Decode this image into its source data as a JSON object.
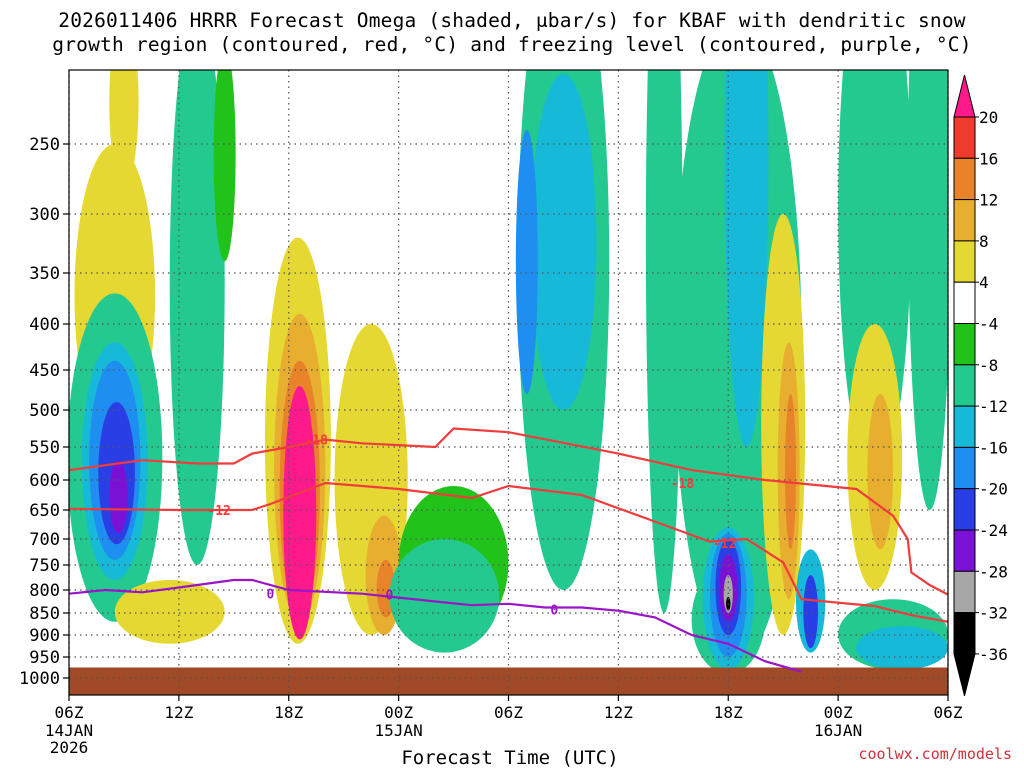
{
  "chart_data": {
    "type": "heatmap",
    "title_line1": "2026011406 HRRR Forecast Omega (shaded, μbar/s) for KBAF with dendritic snow",
    "title_line2": "growth region (contoured, red, °C) and freezing level (contoured, purple, °C)",
    "xlabel": "Forecast Time (UTC)",
    "ylabel": "",
    "credit": "coolwx.com/models",
    "x_unit": "hours since 2026-01-14 06Z",
    "xlim": [
      0,
      48
    ],
    "x_ticks": [
      {
        "h": 0,
        "label": "06Z",
        "sub1": "14JAN",
        "sub2": "2026"
      },
      {
        "h": 6,
        "label": "12Z",
        "sub1": "",
        "sub2": ""
      },
      {
        "h": 12,
        "label": "18Z",
        "sub1": "",
        "sub2": ""
      },
      {
        "h": 18,
        "label": "00Z",
        "sub1": "15JAN",
        "sub2": ""
      },
      {
        "h": 24,
        "label": "06Z",
        "sub1": "",
        "sub2": ""
      },
      {
        "h": 30,
        "label": "12Z",
        "sub1": "",
        "sub2": ""
      },
      {
        "h": 36,
        "label": "18Z",
        "sub1": "",
        "sub2": ""
      },
      {
        "h": 42,
        "label": "00Z",
        "sub1": "16JAN",
        "sub2": ""
      },
      {
        "h": 48,
        "label": "06Z",
        "sub1": "",
        "sub2": ""
      }
    ],
    "y_unit": "hPa",
    "ylim": [
      1000,
      200
    ],
    "y_ticks": [
      250,
      300,
      350,
      400,
      450,
      500,
      550,
      600,
      650,
      700,
      750,
      800,
      850,
      900,
      950,
      1000
    ],
    "colorbar": {
      "labels": [
        "20",
        "16",
        "12",
        "8",
        "4",
        "-4",
        "-8",
        "-12",
        "-16",
        "-20",
        "-24",
        "-28",
        "-32",
        "-36"
      ],
      "colors": [
        "#ff1a8c",
        "#ee3b2e",
        "#e8832a",
        "#e8ae30",
        "#e6d832",
        "#ffffff",
        "#21c21a",
        "#23c98f",
        "#17b9d9",
        "#1e8ef0",
        "#2a3ee6",
        "#7a12d6",
        "#a7a7a7",
        "#000000"
      ]
    },
    "omega_regions": [
      {
        "level": 4,
        "center": [
          2.5,
          400
        ],
        "spread": [
          2.2,
          150
        ]
      },
      {
        "level": -8,
        "center": [
          2.5,
          620
        ],
        "spread": [
          2.6,
          250
        ]
      },
      {
        "level": -8,
        "center": [
          7.0,
          450
        ],
        "spread": [
          1.5,
          300
        ]
      },
      {
        "level": -12,
        "center": [
          2.5,
          600
        ],
        "spread": [
          1.8,
          180
        ]
      },
      {
        "level": -16,
        "center": [
          2.5,
          590
        ],
        "spread": [
          1.4,
          150
        ]
      },
      {
        "level": -20,
        "center": [
          2.6,
          600
        ],
        "spread": [
          1.0,
          110
        ]
      },
      {
        "level": -28,
        "center": [
          2.7,
          630
        ],
        "spread": [
          0.5,
          60
        ]
      },
      {
        "level": 4,
        "center": [
          5.5,
          850
        ],
        "spread": [
          3.0,
          70
        ]
      },
      {
        "level": 4,
        "center": [
          3.0,
          220
        ],
        "spread": [
          0.8,
          60
        ]
      },
      {
        "level": -4,
        "center": [
          8.5,
          260
        ],
        "spread": [
          0.6,
          80
        ]
      },
      {
        "level": 4,
        "center": [
          12.5,
          620
        ],
        "spread": [
          1.8,
          300
        ]
      },
      {
        "level": 8,
        "center": [
          12.6,
          630
        ],
        "spread": [
          1.4,
          240
        ]
      },
      {
        "level": 12,
        "center": [
          12.6,
          650
        ],
        "spread": [
          1.1,
          210
        ]
      },
      {
        "level": 20,
        "center": [
          12.6,
          690
        ],
        "spread": [
          0.9,
          220
        ]
      },
      {
        "level": 4,
        "center": [
          16.5,
          650
        ],
        "spread": [
          2.0,
          250
        ]
      },
      {
        "level": 8,
        "center": [
          17.2,
          780
        ],
        "spread": [
          1.0,
          120
        ]
      },
      {
        "level": 12,
        "center": [
          17.3,
          800
        ],
        "spread": [
          0.5,
          60
        ]
      },
      {
        "level": -4,
        "center": [
          21.0,
          760
        ],
        "spread": [
          3.0,
          150
        ]
      },
      {
        "level": -8,
        "center": [
          20.5,
          820
        ],
        "spread": [
          3.0,
          120
        ]
      },
      {
        "level": -8,
        "center": [
          27.0,
          450
        ],
        "spread": [
          2.5,
          350
        ]
      },
      {
        "level": -12,
        "center": [
          27.0,
          350
        ],
        "spread": [
          1.8,
          150
        ]
      },
      {
        "level": -16,
        "center": [
          25.0,
          360
        ],
        "spread": [
          0.6,
          120
        ]
      },
      {
        "level": -8,
        "center": [
          32.5,
          450
        ],
        "spread": [
          1.0,
          400
        ]
      },
      {
        "level": 4,
        "center": [
          35.0,
          570
        ],
        "spread": [
          1.5,
          150
        ]
      },
      {
        "level": 8,
        "center": [
          35.0,
          560
        ],
        "spread": [
          1.0,
          100
        ]
      },
      {
        "level": -8,
        "center": [
          36.5,
          560
        ],
        "spread": [
          3.5,
          400
        ]
      },
      {
        "level": -8,
        "center": [
          36.0,
          870
        ],
        "spread": [
          2.0,
          120
        ]
      },
      {
        "level": -12,
        "center": [
          36.0,
          830
        ],
        "spread": [
          1.4,
          150
        ]
      },
      {
        "level": -16,
        "center": [
          36.0,
          820
        ],
        "spread": [
          1.0,
          130
        ]
      },
      {
        "level": -20,
        "center": [
          36.0,
          800
        ],
        "spread": [
          0.7,
          100
        ]
      },
      {
        "level": -28,
        "center": [
          36.0,
          800
        ],
        "spread": [
          0.5,
          70
        ]
      },
      {
        "level": -32,
        "center": [
          36.0,
          810
        ],
        "spread": [
          0.25,
          40
        ]
      },
      {
        "level": -36,
        "center": [
          36.0,
          830
        ],
        "spread": [
          0.12,
          15
        ]
      },
      {
        "level": -12,
        "center": [
          37.0,
          300
        ],
        "spread": [
          1.2,
          250
        ]
      },
      {
        "level": 4,
        "center": [
          39.0,
          600
        ],
        "spread": [
          1.2,
          300
        ]
      },
      {
        "level": 8,
        "center": [
          39.3,
          620
        ],
        "spread": [
          0.6,
          200
        ]
      },
      {
        "level": 12,
        "center": [
          39.4,
          600
        ],
        "spread": [
          0.3,
          120
        ]
      },
      {
        "level": -12,
        "center": [
          40.5,
          830
        ],
        "spread": [
          0.8,
          110
        ]
      },
      {
        "level": -20,
        "center": [
          40.5,
          850
        ],
        "spread": [
          0.4,
          80
        ]
      },
      {
        "level": -8,
        "center": [
          44.0,
          350
        ],
        "spread": [
          2.0,
          250
        ]
      },
      {
        "level": 4,
        "center": [
          44.0,
          600
        ],
        "spread": [
          1.5,
          200
        ]
      },
      {
        "level": 8,
        "center": [
          44.3,
          600
        ],
        "spread": [
          0.7,
          120
        ]
      },
      {
        "level": -8,
        "center": [
          47.0,
          350
        ],
        "spread": [
          1.2,
          300
        ]
      },
      {
        "level": -8,
        "center": [
          45.0,
          900
        ],
        "spread": [
          3.0,
          80
        ]
      },
      {
        "level": -12,
        "center": [
          45.5,
          930
        ],
        "spread": [
          2.5,
          50
        ]
      }
    ],
    "contours": [
      {
        "name": "dgz-top",
        "label": "-18",
        "color": "#f03c3c",
        "points": [
          [
            0,
            585
          ],
          [
            4,
            570
          ],
          [
            7,
            575
          ],
          [
            9,
            575
          ],
          [
            10,
            560
          ],
          [
            12,
            550
          ],
          [
            14,
            540
          ],
          [
            16,
            545
          ],
          [
            20,
            550
          ],
          [
            21,
            525
          ],
          [
            24,
            530
          ],
          [
            30,
            560
          ],
          [
            34,
            585
          ],
          [
            38,
            600
          ],
          [
            43,
            615
          ],
          [
            45,
            660
          ],
          [
            45.8,
            700
          ],
          [
            46,
            765
          ],
          [
            47,
            790
          ],
          [
            48,
            810
          ]
        ],
        "labels": [
          {
            "x": 13.5,
            "p": 540,
            "text": "-18"
          },
          {
            "x": 33.5,
            "p": 605,
            "text": "-18"
          }
        ]
      },
      {
        "name": "dgz-bottom",
        "label": "-12",
        "color": "#f03c3c",
        "points": [
          [
            0,
            648
          ],
          [
            6,
            650
          ],
          [
            8,
            650
          ],
          [
            10,
            650
          ],
          [
            11,
            640
          ],
          [
            14,
            605
          ],
          [
            18,
            615
          ],
          [
            22,
            630
          ],
          [
            24,
            610
          ],
          [
            28,
            625
          ],
          [
            32,
            670
          ],
          [
            35,
            705
          ],
          [
            37,
            700
          ],
          [
            39,
            745
          ],
          [
            40,
            820
          ],
          [
            44,
            835
          ],
          [
            46,
            855
          ],
          [
            48,
            870
          ]
        ],
        "labels": [
          {
            "x": 8.2,
            "p": 650,
            "text": "-12"
          },
          {
            "x": 35.8,
            "p": 708,
            "text": "-12"
          }
        ]
      },
      {
        "name": "freezing-level",
        "label": "0",
        "color": "#9b15c8",
        "points": [
          [
            0,
            808
          ],
          [
            2,
            800
          ],
          [
            4,
            805
          ],
          [
            6,
            795
          ],
          [
            9,
            780
          ],
          [
            10,
            780
          ],
          [
            12,
            800
          ],
          [
            16,
            808
          ],
          [
            20,
            825
          ],
          [
            22,
            833
          ],
          [
            24,
            830
          ],
          [
            26,
            838
          ],
          [
            28,
            838
          ],
          [
            30,
            845
          ],
          [
            32,
            860
          ],
          [
            34,
            900
          ],
          [
            36,
            920
          ],
          [
            38,
            960
          ],
          [
            40,
            985
          ]
        ],
        "labels": [
          {
            "x": 11,
            "p": 808,
            "text": "0"
          },
          {
            "x": 17.5,
            "p": 810,
            "text": "0"
          },
          {
            "x": 26.5,
            "p": 842,
            "text": "0"
          }
        ]
      }
    ],
    "ground": {
      "from_hPa": 975,
      "to_hPa": 1030,
      "color": "#a04a28"
    }
  }
}
